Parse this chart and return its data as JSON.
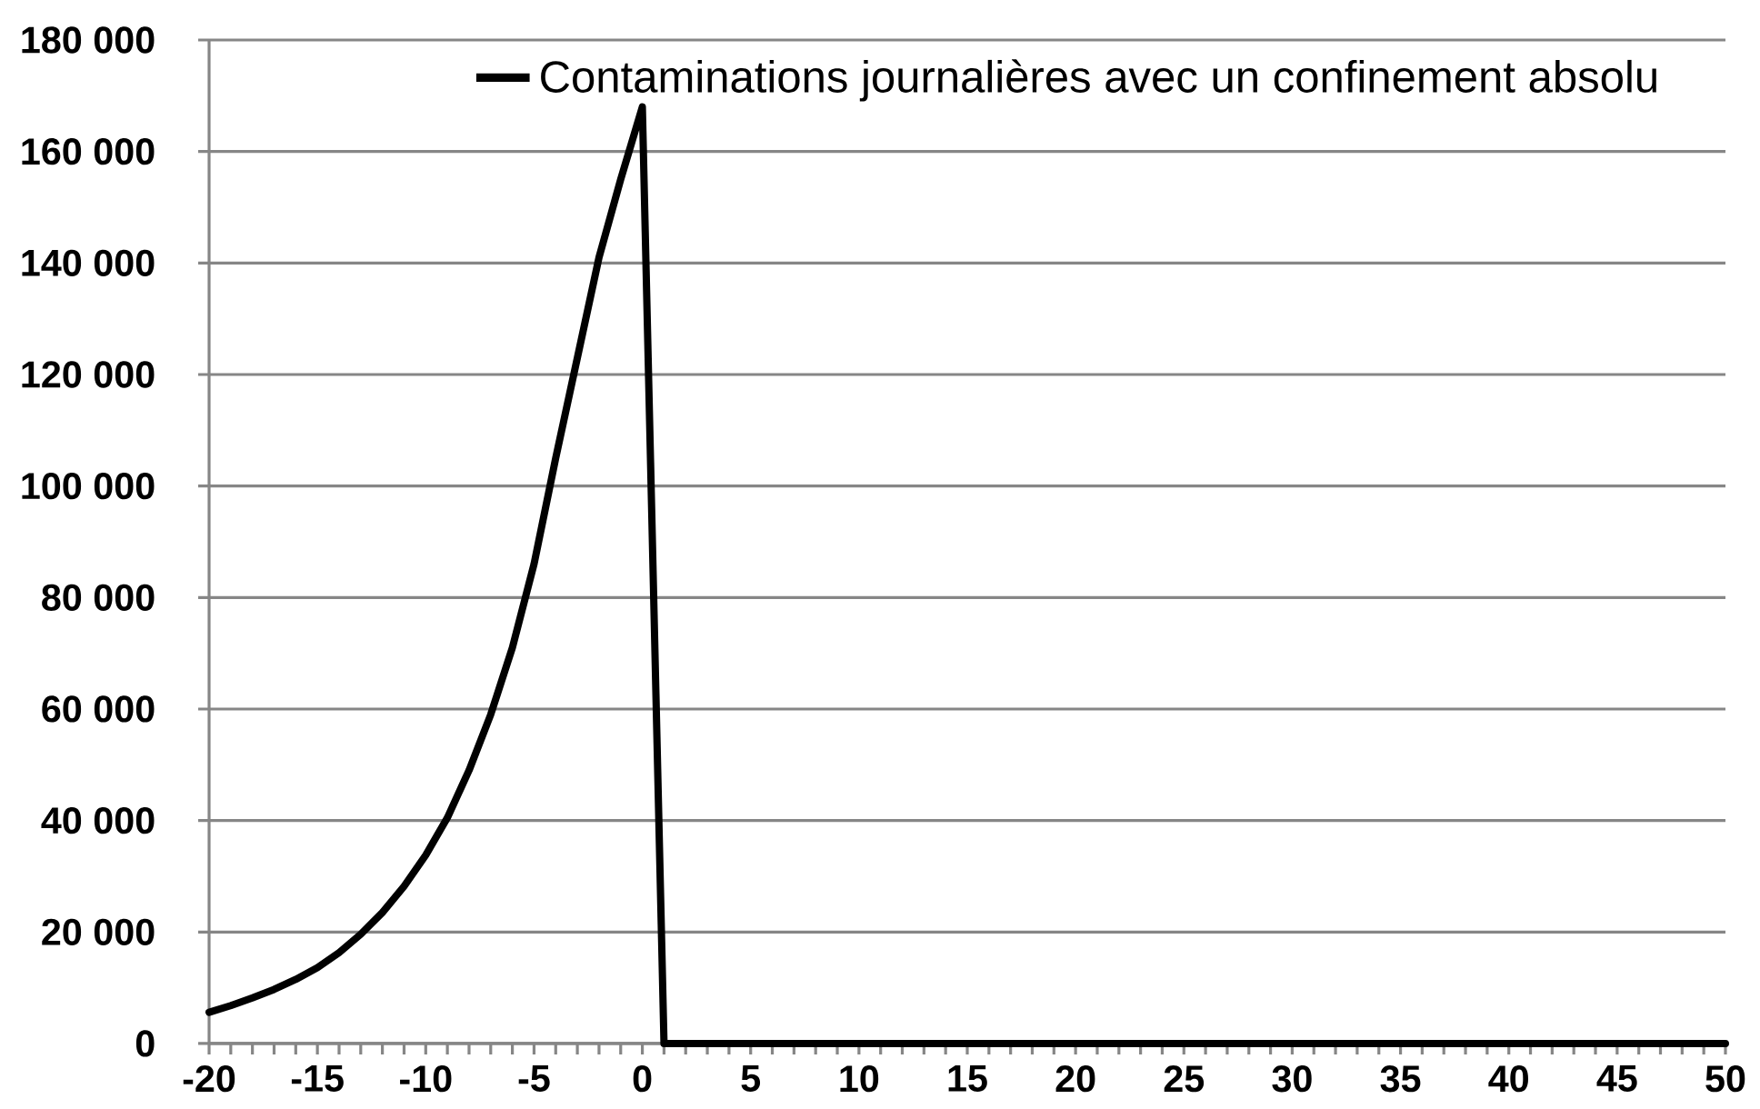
{
  "chart_data": {
    "type": "line",
    "x": [
      -20,
      -19,
      -18,
      -17,
      -16,
      -15,
      -14,
      -13,
      -12,
      -11,
      -10,
      -9,
      -8,
      -7,
      -6,
      -5,
      -4,
      -3,
      -2,
      -1,
      0,
      1,
      2,
      3,
      4,
      5,
      6,
      7,
      8,
      9,
      10,
      11,
      12,
      13,
      14,
      15,
      16,
      17,
      18,
      19,
      20,
      21,
      22,
      23,
      24,
      25,
      26,
      27,
      28,
      29,
      30,
      31,
      32,
      33,
      34,
      35,
      36,
      37,
      38,
      39,
      40,
      41,
      42,
      43,
      44,
      45,
      46,
      47,
      48,
      49,
      50
    ],
    "series": [
      {
        "name": "Contaminations journalières avec un confinement absolu",
        "color": "#000000",
        "values": [
          5600,
          6800,
          8200,
          9700,
          11500,
          13600,
          16300,
          19600,
          23500,
          28200,
          33800,
          40500,
          49000,
          59000,
          71000,
          86000,
          105000,
          123000,
          141000,
          155000,
          168000,
          0,
          0,
          0,
          0,
          0,
          0,
          0,
          0,
          0,
          0,
          0,
          0,
          0,
          0,
          0,
          0,
          0,
          0,
          0,
          0,
          0,
          0,
          0,
          0,
          0,
          0,
          0,
          0,
          0,
          0,
          0,
          0,
          0,
          0,
          0,
          0,
          0,
          0,
          0,
          0,
          0,
          0,
          0,
          0,
          0,
          0,
          0,
          0,
          0,
          0
        ]
      }
    ],
    "xlim": [
      -20,
      50
    ],
    "xticks": [
      -20,
      {
        "value": -19,
        "label": null
      },
      {
        "value": -18,
        "label": null
      },
      {
        "value": -17,
        "label": null
      },
      {
        "value": -16,
        "label": null
      },
      -15,
      {
        "value": -14,
        "label": null
      },
      {
        "value": -13,
        "label": null
      },
      {
        "value": -12,
        "label": null
      },
      {
        "value": -11,
        "label": null
      },
      -10,
      {
        "value": -9,
        "label": null
      },
      {
        "value": -8,
        "label": null
      },
      {
        "value": -7,
        "label": null
      },
      {
        "value": -6,
        "label": null
      },
      -5,
      {
        "value": -4,
        "label": null
      },
      {
        "value": -3,
        "label": null
      },
      {
        "value": -2,
        "label": null
      },
      {
        "value": -1,
        "label": null
      },
      0,
      {
        "value": 1,
        "label": null
      },
      {
        "value": 2,
        "label": null
      },
      {
        "value": 3,
        "label": null
      },
      {
        "value": 4,
        "label": null
      },
      5,
      {
        "value": 6,
        "label": null
      },
      {
        "value": 7,
        "label": null
      },
      {
        "value": 8,
        "label": null
      },
      {
        "value": 9,
        "label": null
      },
      10,
      {
        "value": 11,
        "label": null
      },
      {
        "value": 12,
        "label": null
      },
      {
        "value": 13,
        "label": null
      },
      {
        "value": 14,
        "label": null
      },
      15,
      {
        "value": 16,
        "label": null
      },
      {
        "value": 17,
        "label": null
      },
      {
        "value": 18,
        "label": null
      },
      {
        "value": 19,
        "label": null
      },
      20,
      {
        "value": 21,
        "label": null
      },
      {
        "value": 22,
        "label": null
      },
      {
        "value": 23,
        "label": null
      },
      {
        "value": 24,
        "label": null
      },
      25,
      {
        "value": 26,
        "label": null
      },
      {
        "value": 27,
        "label": null
      },
      {
        "value": 28,
        "label": null
      },
      {
        "value": 29,
        "label": null
      },
      30,
      {
        "value": 31,
        "label": null
      },
      {
        "value": 32,
        "label": null
      },
      {
        "value": 33,
        "label": null
      },
      {
        "value": 34,
        "label": null
      },
      35,
      {
        "value": 36,
        "label": null
      },
      {
        "value": 37,
        "label": null
      },
      {
        "value": 38,
        "label": null
      },
      {
        "value": 39,
        "label": null
      },
      40,
      {
        "value": 41,
        "label": null
      },
      {
        "value": 42,
        "label": null
      },
      {
        "value": 43,
        "label": null
      },
      {
        "value": 44,
        "label": null
      },
      45,
      {
        "value": 46,
        "label": null
      },
      {
        "value": 47,
        "label": null
      },
      {
        "value": 48,
        "label": null
      },
      {
        "value": 49,
        "label": null
      },
      50
    ],
    "ylim": [
      0,
      180000
    ],
    "yticks": [
      0,
      {
        "value": 20000,
        "label": "20 000"
      },
      {
        "value": 40000,
        "label": "40 000"
      },
      {
        "value": 60000,
        "label": "60 000"
      },
      {
        "value": 80000,
        "label": "80 000"
      },
      {
        "value": 100000,
        "label": "100 000"
      },
      {
        "value": 120000,
        "label": "120 000"
      },
      {
        "value": 140000,
        "label": "140 000"
      },
      {
        "value": 160000,
        "label": "160 000"
      },
      {
        "value": 180000,
        "label": "180 000"
      }
    ],
    "grid": "y",
    "legend": "top right"
  }
}
